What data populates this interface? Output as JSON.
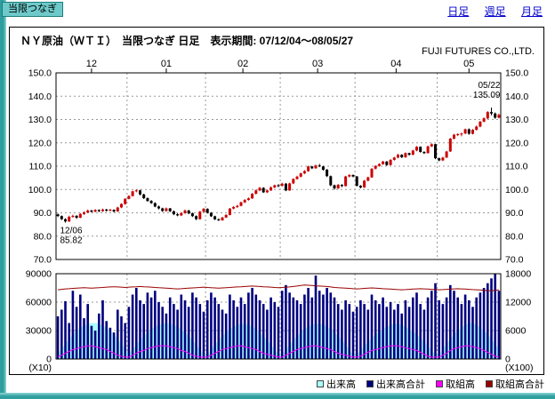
{
  "page": {
    "tab_label": "当限つなぎ",
    "nav": [
      {
        "label": "日足"
      },
      {
        "label": "週足"
      },
      {
        "label": "月足"
      }
    ],
    "title": "ＮＹ原油（ＷＴＩ）　当限つなぎ 日足　表示期間: 07/12/04～08/05/27",
    "company": "FUJI FUTURES CO.,LTD."
  },
  "colors": {
    "up": "#cc0000",
    "down": "#000000",
    "volume_bar": "#000080",
    "volume_area": "#aaffff",
    "oi": "#ff00ff",
    "oi_total": "#990000",
    "grid": "#999999",
    "link": "#0000cc",
    "frame": "#2f9e9e"
  },
  "chart_data": {
    "type": "candlestick",
    "title": "ＮＹ原油（ＷＴＩ） 当限つなぎ 日足",
    "period": "07/12/04～08/05/27",
    "price_axis": {
      "tick_labels": [
        "150.0",
        "140.0",
        "130.0",
        "120.0",
        "110.0",
        "100.0",
        "90.0",
        "80.0",
        "70.0"
      ],
      "tick_values": [
        150,
        140,
        130,
        120,
        110,
        100,
        90,
        80,
        70
      ],
      "ylim": [
        70,
        150
      ]
    },
    "months": {
      "labels": [
        "12",
        "01",
        "02",
        "03",
        "04",
        "05"
      ],
      "starts": [
        0,
        19,
        40,
        60,
        80,
        102
      ]
    },
    "annotations": [
      {
        "index": 2,
        "price": 85.82,
        "pos": "below",
        "lines": [
          "12/06",
          "85.82"
        ]
      },
      {
        "index": 116,
        "price": 135.09,
        "pos": "above",
        "lines": [
          "05/22",
          "135.09"
        ]
      }
    ],
    "candles": [
      [
        89.3,
        89.7,
        88.2,
        88.6
      ],
      [
        88.6,
        88.9,
        86.9,
        87.3
      ],
      [
        87.3,
        87.6,
        85.82,
        86.3
      ],
      [
        86.3,
        88.8,
        86.1,
        88.3
      ],
      [
        88.3,
        89.2,
        87.9,
        88.7
      ],
      [
        88.7,
        89.0,
        87.4,
        87.9
      ],
      [
        87.9,
        89.9,
        87.7,
        89.5
      ],
      [
        89.5,
        90.6,
        89.1,
        90.2
      ],
      [
        90.2,
        91.4,
        89.9,
        91.0
      ],
      [
        91.0,
        91.3,
        90.1,
        90.5
      ],
      [
        90.5,
        91.6,
        90.2,
        91.2
      ],
      [
        91.2,
        91.5,
        90.3,
        90.7
      ],
      [
        90.7,
        91.8,
        90.4,
        91.4
      ],
      [
        91.4,
        91.7,
        90.5,
        90.9
      ],
      [
        90.9,
        91.7,
        90.6,
        91.3
      ],
      [
        91.3,
        91.5,
        90.2,
        90.6
      ],
      [
        90.6,
        92.6,
        90.4,
        92.3
      ],
      [
        92.3,
        94.1,
        92.0,
        93.8
      ],
      [
        93.8,
        96.3,
        93.5,
        96.0
      ],
      [
        96.0,
        97.6,
        95.8,
        97.2
      ],
      [
        97.2,
        99.5,
        97.0,
        99.2
      ],
      [
        99.2,
        100.1,
        98.8,
        99.6
      ],
      [
        99.6,
        99.9,
        97.5,
        97.9
      ],
      [
        97.9,
        98.2,
        95.9,
        96.3
      ],
      [
        96.3,
        96.6,
        94.8,
        95.1
      ],
      [
        95.1,
        95.5,
        93.8,
        94.2
      ],
      [
        94.2,
        94.5,
        92.4,
        92.7
      ],
      [
        92.7,
        93.1,
        91.5,
        91.9
      ],
      [
        91.9,
        92.2,
        90.4,
        90.8
      ],
      [
        90.8,
        92.3,
        90.5,
        91.9
      ],
      [
        91.9,
        92.1,
        90.3,
        90.7
      ],
      [
        90.7,
        91.0,
        89.0,
        89.4
      ],
      [
        89.4,
        89.8,
        88.5,
        88.9
      ],
      [
        88.9,
        90.2,
        88.6,
        89.9
      ],
      [
        89.9,
        91.4,
        89.6,
        91.0
      ],
      [
        91.0,
        91.3,
        89.4,
        89.8
      ],
      [
        89.8,
        90.1,
        88.2,
        88.6
      ],
      [
        88.6,
        88.9,
        86.9,
        87.3
      ],
      [
        87.3,
        90.8,
        87.1,
        90.5
      ],
      [
        90.5,
        92.1,
        90.2,
        91.7
      ],
      [
        91.7,
        92.0,
        89.7,
        90.0
      ],
      [
        90.0,
        90.3,
        88.2,
        88.5
      ],
      [
        88.5,
        88.8,
        86.9,
        87.2
      ],
      [
        87.2,
        87.6,
        86.5,
        86.8
      ],
      [
        86.8,
        88.3,
        86.6,
        88.0
      ],
      [
        88.0,
        89.4,
        87.8,
        89.1
      ],
      [
        89.1,
        92.1,
        88.9,
        91.8
      ],
      [
        91.8,
        92.9,
        91.5,
        92.5
      ],
      [
        92.5,
        93.4,
        92.1,
        93.0
      ],
      [
        93.0,
        94.8,
        92.8,
        94.5
      ],
      [
        94.5,
        95.9,
        94.2,
        95.5
      ],
      [
        95.5,
        96.6,
        95.2,
        96.2
      ],
      [
        96.2,
        98.5,
        96.0,
        98.2
      ],
      [
        98.2,
        100.0,
        97.9,
        99.6
      ],
      [
        99.6,
        101.1,
        99.3,
        100.7
      ],
      [
        100.7,
        101.0,
        98.5,
        98.8
      ],
      [
        98.8,
        100.0,
        98.5,
        99.6
      ],
      [
        99.6,
        101.3,
        99.4,
        100.9
      ],
      [
        100.9,
        102.1,
        100.6,
        101.8
      ],
      [
        101.8,
        102.3,
        101.0,
        101.6
      ],
      [
        101.6,
        102.9,
        101.3,
        102.5
      ],
      [
        102.5,
        102.8,
        99.3,
        99.6
      ],
      [
        99.6,
        102.9,
        99.4,
        102.6
      ],
      [
        102.6,
        104.8,
        102.3,
        104.5
      ],
      [
        104.5,
        105.9,
        104.2,
        105.5
      ],
      [
        105.5,
        107.2,
        105.2,
        106.9
      ],
      [
        106.9,
        108.3,
        106.6,
        107.9
      ],
      [
        107.9,
        110.2,
        107.6,
        109.9
      ],
      [
        109.9,
        110.1,
        108.8,
        109.1
      ],
      [
        109.1,
        110.7,
        108.9,
        110.3
      ],
      [
        110.3,
        111.0,
        109.6,
        109.9
      ],
      [
        109.9,
        110.2,
        108.1,
        108.5
      ],
      [
        108.5,
        108.8,
        105.3,
        105.7
      ],
      [
        105.7,
        106.0,
        101.4,
        101.8
      ],
      [
        101.8,
        102.1,
        99.9,
        100.5
      ],
      [
        100.5,
        102.4,
        100.2,
        102.0
      ],
      [
        102.0,
        102.3,
        101.0,
        101.5
      ],
      [
        101.5,
        105.9,
        101.3,
        105.6
      ],
      [
        105.6,
        106.6,
        105.2,
        106.2
      ],
      [
        106.2,
        106.5,
        105.2,
        105.6
      ],
      [
        105.6,
        105.8,
        101.3,
        101.6
      ],
      [
        101.6,
        101.9,
        100.5,
        100.9
      ],
      [
        100.9,
        104.1,
        100.7,
        103.8
      ],
      [
        103.8,
        105.5,
        103.5,
        105.2
      ],
      [
        105.2,
        109.2,
        105.0,
        108.9
      ],
      [
        108.9,
        110.4,
        108.6,
        110.1
      ],
      [
        110.1,
        111.2,
        109.8,
        110.9
      ],
      [
        110.9,
        112.3,
        110.6,
        112.0
      ],
      [
        112.0,
        112.2,
        110.1,
        110.5
      ],
      [
        110.5,
        113.0,
        110.3,
        112.7
      ],
      [
        112.7,
        114.0,
        112.4,
        113.7
      ],
      [
        113.7,
        115.2,
        113.4,
        114.9
      ],
      [
        114.9,
        115.1,
        113.5,
        113.8
      ],
      [
        113.8,
        115.9,
        113.6,
        115.6
      ],
      [
        115.6,
        115.8,
        114.5,
        114.9
      ],
      [
        114.9,
        117.0,
        114.7,
        116.7
      ],
      [
        116.7,
        118.6,
        116.4,
        118.3
      ],
      [
        118.3,
        118.5,
        115.8,
        116.1
      ],
      [
        116.1,
        116.4,
        115.2,
        115.6
      ],
      [
        115.6,
        118.8,
        115.4,
        118.5
      ],
      [
        118.5,
        119.8,
        118.2,
        119.4
      ],
      [
        119.4,
        119.6,
        113.0,
        113.4
      ],
      [
        113.4,
        113.7,
        112.1,
        112.5
      ],
      [
        112.5,
        114.0,
        112.2,
        113.7
      ],
      [
        113.7,
        116.6,
        113.5,
        116.3
      ],
      [
        116.3,
        122.1,
        116.1,
        121.8
      ],
      [
        121.8,
        123.8,
        121.5,
        123.5
      ],
      [
        123.5,
        124.1,
        122.9,
        123.7
      ],
      [
        123.7,
        124.4,
        122.8,
        124.0
      ],
      [
        124.0,
        126.1,
        123.7,
        125.8
      ],
      [
        125.8,
        126.2,
        123.5,
        123.9
      ],
      [
        123.9,
        125.9,
        123.6,
        125.6
      ],
      [
        125.6,
        127.4,
        125.3,
        127.0
      ],
      [
        127.0,
        129.4,
        126.7,
        129.1
      ],
      [
        129.1,
        130.9,
        128.8,
        130.5
      ],
      [
        130.5,
        133.6,
        130.2,
        133.2
      ],
      [
        133.2,
        135.09,
        131.8,
        132.6
      ],
      [
        132.6,
        133.0,
        130.3,
        130.8
      ],
      [
        130.8,
        132.5,
        130.5,
        132.0
      ]
    ],
    "volume_panel": {
      "left_tick_labels": [
        "90000",
        "60000",
        "30000",
        "0"
      ],
      "right_tick_labels": [
        "18000",
        "12000",
        "6000",
        "0"
      ],
      "tick_values": [
        90000,
        60000,
        30000,
        0
      ],
      "left_unit": "(X10)",
      "right_unit": "(X100)",
      "ylim": [
        0,
        90000
      ],
      "volume_total": [
        45000,
        52000,
        61000,
        38000,
        72000,
        55000,
        68000,
        43000,
        58000,
        35000,
        30000,
        48000,
        62000,
        40000,
        33000,
        28000,
        52000,
        45000,
        38000,
        55000,
        68000,
        75000,
        62000,
        58000,
        70000,
        65000,
        72000,
        60000,
        55000,
        48000,
        65000,
        58000,
        52000,
        68000,
        62000,
        55000,
        70000,
        65000,
        58000,
        50000,
        62000,
        70000,
        65000,
        58000,
        52000,
        48000,
        68000,
        62000,
        55000,
        65000,
        58000,
        70000,
        75000,
        68000,
        62000,
        58000,
        52000,
        65000,
        60000,
        55000,
        72000,
        78000,
        70000,
        65000,
        62000,
        58000,
        68000,
        75000,
        65000,
        88000,
        72000,
        68000,
        75000,
        70000,
        65000,
        58000,
        52000,
        62000,
        58000,
        50000,
        55000,
        62000,
        58000,
        52000,
        68000,
        62000,
        58000,
        65000,
        55000,
        60000,
        52000,
        58000,
        48000,
        62000,
        55000,
        65000,
        70000,
        58000,
        52000,
        65000,
        72000,
        80000,
        62000,
        58000,
        65000,
        78000,
        72000,
        65000,
        58000,
        68000,
        62000,
        55000,
        65000,
        70000,
        75000,
        80000,
        85000,
        90000,
        72000
      ],
      "volume": [
        6000,
        11000,
        16000,
        21000,
        26000,
        30000,
        33000,
        35000,
        37000,
        38000,
        38000,
        37000,
        35000,
        33000,
        30000,
        26000,
        21000,
        16000,
        11000,
        6000,
        10000,
        15000,
        20000,
        24000,
        28000,
        31000,
        34000,
        36000,
        37000,
        38000,
        37000,
        36000,
        34000,
        31000,
        28000,
        24000,
        20000,
        15000,
        10000,
        6000,
        5000,
        10000,
        15000,
        20000,
        24000,
        28000,
        32000,
        34000,
        36000,
        37000,
        37000,
        36000,
        34000,
        32000,
        28000,
        24000,
        20000,
        15000,
        10000,
        5000,
        5000,
        10000,
        15000,
        20000,
        24000,
        28000,
        32000,
        34000,
        36000,
        37000,
        37000,
        36000,
        34000,
        32000,
        28000,
        24000,
        20000,
        15000,
        10000,
        5000,
        5000,
        9000,
        14000,
        18000,
        22000,
        26000,
        29000,
        32000,
        34000,
        36000,
        37000,
        37000,
        36000,
        34000,
        32000,
        29000,
        26000,
        22000,
        18000,
        14000,
        9000,
        5000,
        5000,
        10000,
        16000,
        21000,
        26000,
        30000,
        33000,
        36000,
        38000,
        38000,
        36000,
        33000,
        30000,
        26000,
        21000,
        16000,
        10000
      ],
      "oi": [
        2000,
        4000,
        6000,
        8000,
        10000,
        11000,
        12000,
        13000,
        14000,
        14000,
        13000,
        12000,
        11000,
        10000,
        8000,
        6000,
        4000,
        3000,
        2000,
        2000,
        4000,
        6000,
        8000,
        9000,
        11000,
        12000,
        13000,
        14000,
        14000,
        14000,
        13000,
        12000,
        11000,
        9000,
        8000,
        6000,
        4000,
        3000,
        2000,
        2000,
        2000,
        4000,
        6000,
        8000,
        10000,
        11000,
        12000,
        13000,
        14000,
        14000,
        13000,
        12000,
        11000,
        10000,
        8000,
        6000,
        5000,
        4000,
        3000,
        2000,
        2000,
        4000,
        6000,
        8000,
        10000,
        11000,
        12000,
        13000,
        14000,
        14000,
        13000,
        12000,
        11000,
        10000,
        8000,
        6000,
        5000,
        4000,
        3000,
        2000,
        2000,
        3000,
        5000,
        7000,
        9000,
        10000,
        11000,
        12000,
        13000,
        14000,
        14000,
        14000,
        13000,
        12000,
        11000,
        10000,
        9000,
        7000,
        5000,
        3000,
        2000,
        2000,
        2000,
        4000,
        6000,
        9000,
        11000,
        12000,
        13000,
        14000,
        14000,
        13000,
        12000,
        11000,
        9000,
        7000,
        5000,
        3000,
        2000
      ],
      "oi_total": [
        73000,
        73500,
        74000,
        74200,
        74500,
        74800,
        75000,
        75200,
        75000,
        74800,
        75000,
        75200,
        75500,
        75800,
        76000,
        76200,
        76000,
        75800,
        75500,
        75800,
        76000,
        76200,
        76500,
        76200,
        76000,
        75800,
        75500,
        75200,
        75000,
        74800,
        74500,
        74200,
        74000,
        74200,
        74500,
        74800,
        75000,
        75200,
        75500,
        75800,
        75500,
        75200,
        75000,
        74800,
        75000,
        75200,
        75500,
        75800,
        76000,
        76200,
        76500,
        76800,
        77000,
        76800,
        76500,
        76200,
        76000,
        75800,
        75500,
        75200,
        75500,
        75800,
        76000,
        76500,
        77000,
        77500,
        78000,
        77800,
        77500,
        77200,
        77000,
        76800,
        76500,
        76000,
        75500,
        75200,
        75000,
        74800,
        74500,
        74200,
        74000,
        74200,
        74500,
        74800,
        75000,
        74800,
        74500,
        74200,
        74000,
        73800,
        73500,
        73200,
        73000,
        73200,
        73500,
        73800,
        74000,
        74200,
        74000,
        73800,
        73500,
        73200,
        73000,
        73200,
        73500,
        73800,
        74000,
        74200,
        74000,
        73800,
        73500,
        73200,
        73000,
        72800,
        72500,
        72200,
        72000,
        72500,
        73000
      ]
    },
    "legend": [
      {
        "label": "出来高",
        "color": "#aaffff"
      },
      {
        "label": "出来高合計",
        "color": "#000080"
      },
      {
        "label": "取組高",
        "color": "#ff00ff"
      },
      {
        "label": "取組高合計",
        "color": "#990000"
      }
    ]
  }
}
